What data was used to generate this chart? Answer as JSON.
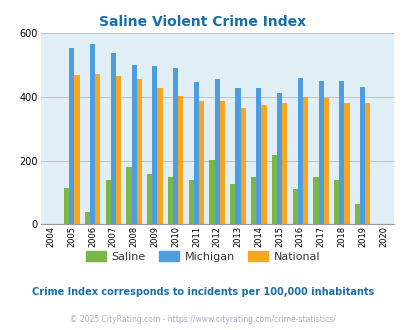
{
  "title": "Saline Violent Crime Index",
  "title_color": "#1a6ea8",
  "years": [
    2004,
    2005,
    2006,
    2007,
    2008,
    2009,
    2010,
    2011,
    2012,
    2013,
    2014,
    2015,
    2016,
    2017,
    2018,
    2019,
    2020
  ],
  "saline": [
    0,
    115,
    40,
    140,
    180,
    158,
    148,
    138,
    202,
    128,
    148,
    218,
    112,
    148,
    140,
    65,
    0
  ],
  "michigan": [
    0,
    552,
    565,
    538,
    500,
    498,
    490,
    445,
    455,
    428,
    428,
    412,
    460,
    450,
    448,
    432,
    0
  ],
  "national": [
    0,
    468,
    470,
    464,
    456,
    428,
    402,
    387,
    388,
    365,
    373,
    382,
    398,
    395,
    382,
    379,
    0
  ],
  "saline_color": "#7ab648",
  "michigan_color": "#4d9de0",
  "national_color": "#f5a623",
  "bg_color": "#e0eef5",
  "ylim": [
    0,
    600
  ],
  "yticks": [
    0,
    200,
    400,
    600
  ],
  "subtitle": "Crime Index corresponds to incidents per 100,000 inhabitants",
  "subtitle_color": "#1a6ea8",
  "footer": "© 2025 CityRating.com - https://www.cityrating.com/crime-statistics/",
  "footer_color": "#aaaacc",
  "bar_width": 0.25,
  "grid_color": "#bbbbbb"
}
